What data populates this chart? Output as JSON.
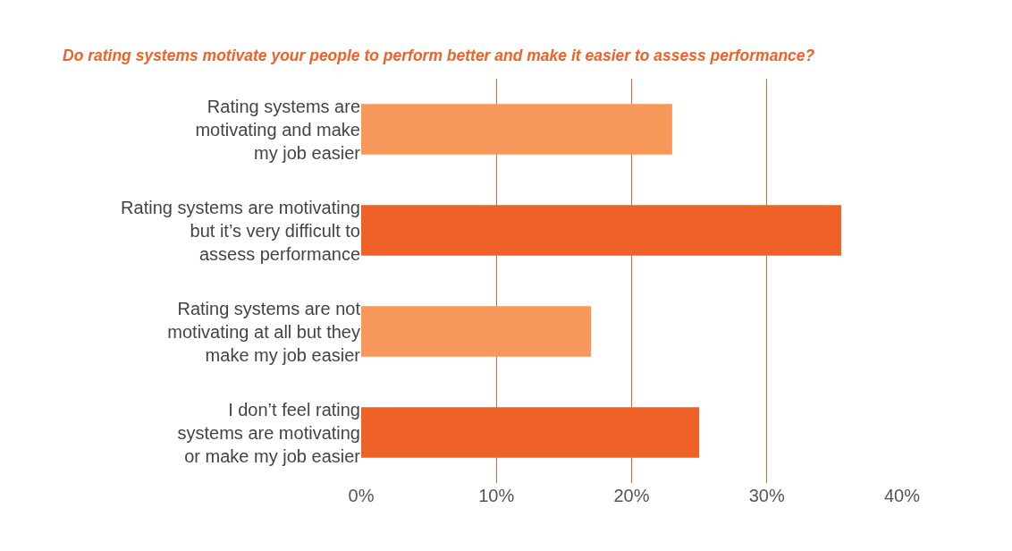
{
  "chart_data": {
    "type": "bar",
    "orientation": "horizontal",
    "title": "Do rating systems motivate your people to perform better and make it easier to assess performance?",
    "categories": [
      "Rating systems are\nmotivating and make\nmy job easier",
      "Rating systems are motivating\nbut it’s very difficult to\nassess performance",
      "Rating systems are not\nmotivating at all but they\nmake my job easier",
      "I don’t feel rating\nsystems are motivating\nor make my job easier"
    ],
    "values": [
      23,
      35.5,
      17,
      25
    ],
    "colors": [
      "#f7975a",
      "#ee6228",
      "#f7975a",
      "#ee6228"
    ],
    "xlim": [
      0,
      40
    ],
    "xticks": [
      {
        "value": 0,
        "label": "0%"
      },
      {
        "value": 10,
        "label": "10%"
      },
      {
        "value": 20,
        "label": "20%"
      },
      {
        "value": 30,
        "label": "30%"
      },
      {
        "value": 40,
        "label": "40%"
      }
    ],
    "grid": "x"
  }
}
